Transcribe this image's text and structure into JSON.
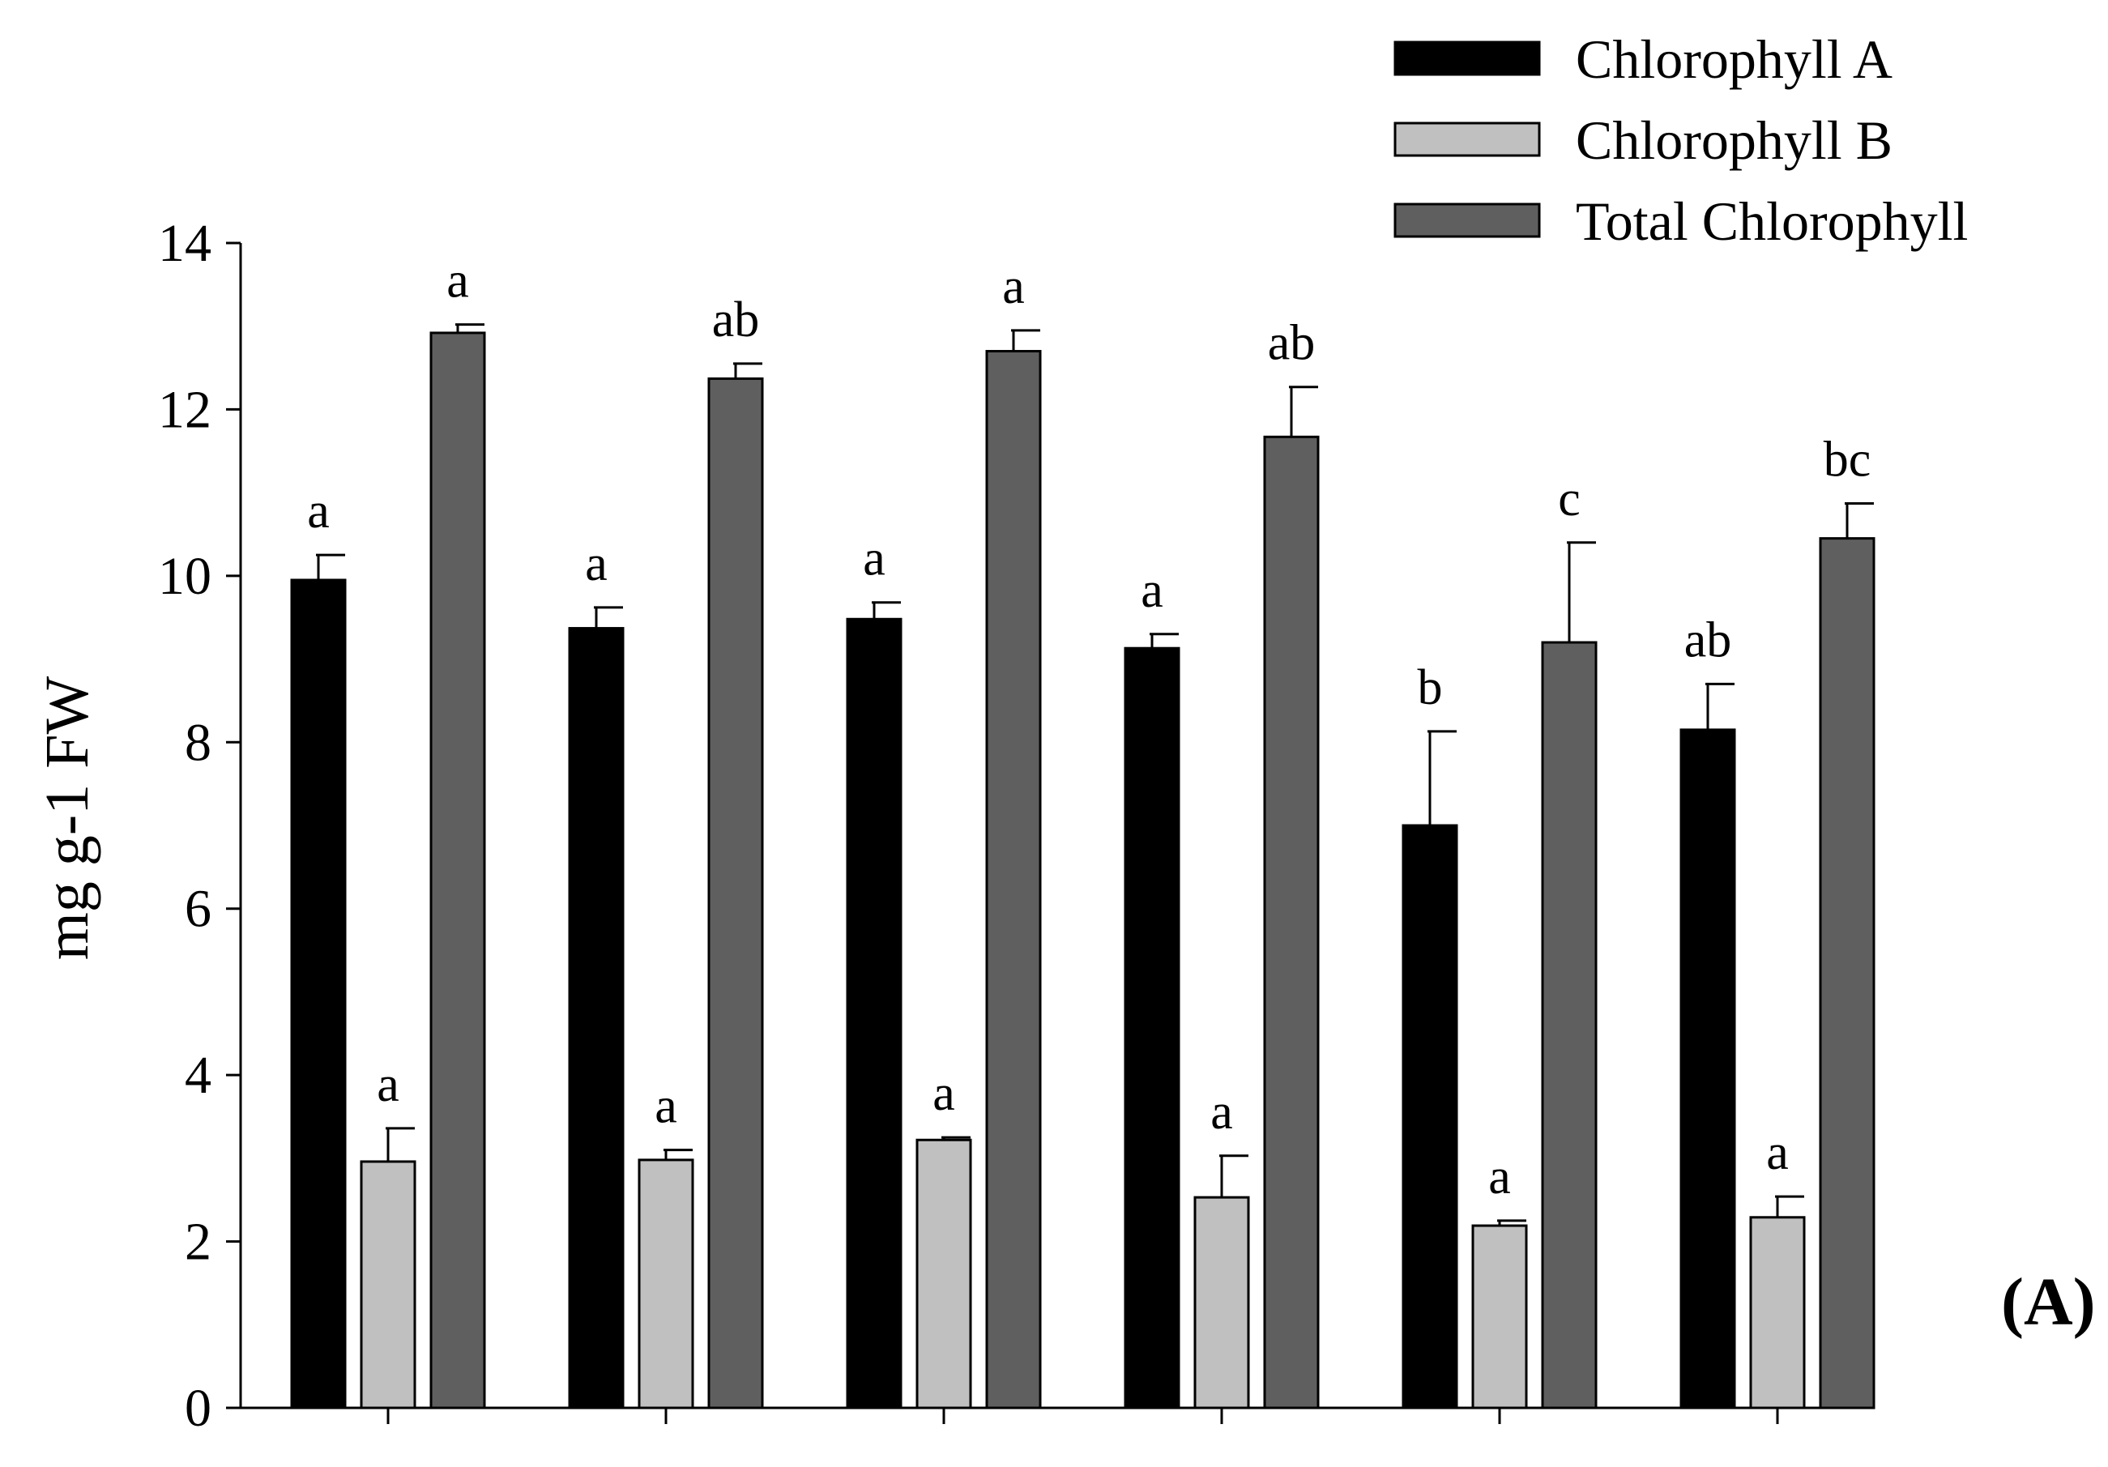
{
  "chart_data": {
    "type": "bar",
    "title": "",
    "xlabel": "",
    "ylabel": "mg g-1 FW",
    "panel_label": "(A)",
    "ylim": [
      0,
      14
    ],
    "yticks": [
      "0",
      "2",
      "4",
      "6",
      "8",
      "10",
      "12",
      "14"
    ],
    "ytick_values": [
      0,
      2,
      4,
      6,
      8,
      10,
      12,
      14
    ],
    "categories": [
      "",
      "",
      "",
      "",
      "",
      ""
    ],
    "grid": false,
    "legend_position": "top-right",
    "series": [
      {
        "name": "Chlorophyll A",
        "color": "#000000",
        "values": [
          9.95,
          9.37,
          9.48,
          9.13,
          7.0,
          8.15
        ],
        "errors": [
          0.3,
          0.25,
          0.2,
          0.17,
          1.13,
          0.55
        ],
        "labels": [
          "a",
          "a",
          "a",
          "a",
          "b",
          "ab"
        ]
      },
      {
        "name": "Chlorophyll B",
        "color": "#c0c0c0",
        "values": [
          2.96,
          2.98,
          3.22,
          2.53,
          2.19,
          2.29
        ],
        "errors": [
          0.4,
          0.12,
          0.03,
          0.5,
          0.06,
          0.25
        ],
        "labels": [
          "a",
          "a",
          "a",
          "a",
          "a",
          "a"
        ]
      },
      {
        "name": "Total Chlorophyll",
        "color": "#5f5f5f",
        "values": [
          12.92,
          12.37,
          12.7,
          11.67,
          9.2,
          10.45
        ],
        "errors": [
          0.1,
          0.18,
          0.25,
          0.6,
          1.2,
          0.42
        ],
        "labels": [
          "a",
          "ab",
          "a",
          "ab",
          "c",
          "bc"
        ]
      }
    ]
  }
}
